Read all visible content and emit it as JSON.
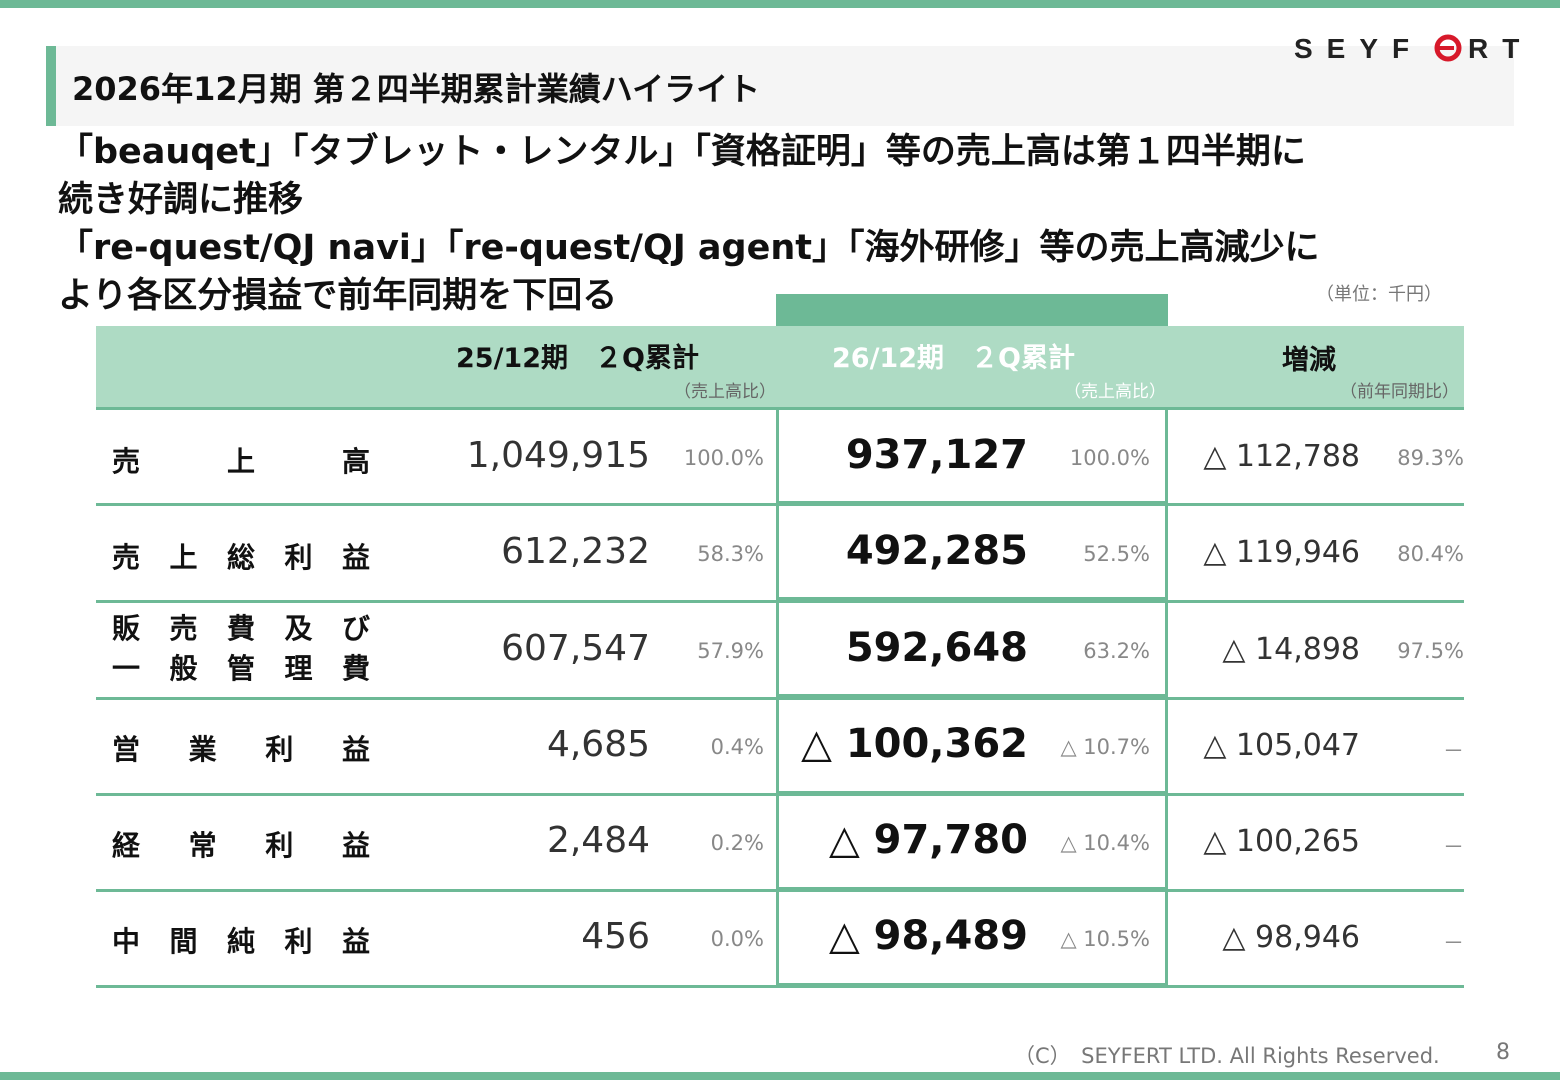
{
  "header": {
    "title": "2026年12月期 第２四半期累計業績ハイライト",
    "logo_text": "SEYFERT",
    "brand_color": "#6db996",
    "logo_accent": "#d7192a"
  },
  "lead": {
    "line1": "「beauqet」「タブレット・レンタル」「資格証明」等の売上高は第１四半期に",
    "line2": "続き好調に推移",
    "line3": "「re-quest/QJ navi」「re-quest/QJ agent」「海外研修」等の売上高減少に",
    "line4": "より各区分損益で前年同期を下回る"
  },
  "table": {
    "unit": "（単位：千円）",
    "headers": {
      "prev": "25/12期　２Q累計",
      "prev_sub": "（売上高比）",
      "curr": "26/12期　２Q累計",
      "curr_sub": "（売上高比）",
      "diff": "増減",
      "diff_sub": "（前年同期比）"
    },
    "rows": [
      {
        "label": "売上高",
        "prev": "1,049,915",
        "prev_pct": "100.0%",
        "curr": "937,127",
        "curr_pct": "100.0%",
        "diff": "△ 112,788",
        "diff_pct": "89.3%"
      },
      {
        "label": "売上総利益",
        "prev": "612,232",
        "prev_pct": "58.3%",
        "curr": "492,285",
        "curr_pct": "52.5%",
        "diff": "△ 119,946",
        "diff_pct": "80.4%"
      },
      {
        "label": "販売費及び",
        "label2": "一般管理費",
        "prev": "607,547",
        "prev_pct": "57.9%",
        "curr": "592,648",
        "curr_pct": "63.2%",
        "diff": "△ 14,898",
        "diff_pct": "97.5%"
      },
      {
        "label": "営業利益",
        "prev": "4,685",
        "prev_pct": "0.4%",
        "curr": "△ 100,362",
        "curr_pct": "△ 10.7%",
        "diff": "△ 105,047",
        "diff_pct": "－"
      },
      {
        "label": "経常利益",
        "prev": "2,484",
        "prev_pct": "0.2%",
        "curr": "△ 97,780",
        "curr_pct": "△ 10.4%",
        "diff": "△ 100,265",
        "diff_pct": "－"
      },
      {
        "label": "中間純利益",
        "prev": "456",
        "prev_pct": "0.0%",
        "curr": "△ 98,489",
        "curr_pct": "△ 10.5%",
        "diff": "△ 98,946",
        "diff_pct": "－"
      }
    ]
  },
  "footer": {
    "copyright": "（C）　SEYFERT LTD. All Rights Reserved.",
    "page": "8"
  }
}
